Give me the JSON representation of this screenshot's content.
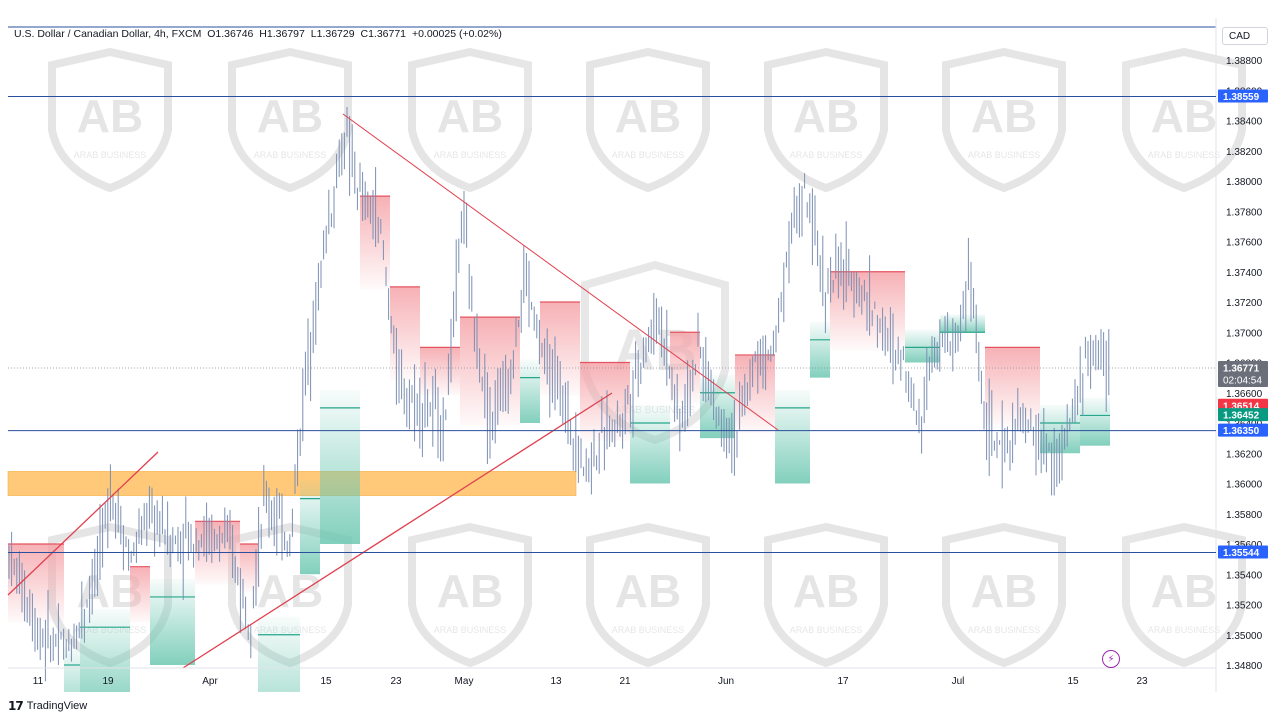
{
  "chart_data": {
    "type": "candlestick",
    "symbol_header": {
      "name": "U.S. Dollar / Canadian Dollar, 4h, FXCM",
      "open": "O1.36746",
      "high": "H1.36797",
      "low": "L1.36729",
      "close": "C1.36771",
      "change": "+0.00025 (+0.02%)"
    },
    "currency": "CAD",
    "ylim": [
      1.347,
      1.39
    ],
    "y_ticks": [
      "1.38800",
      "1.38600",
      "1.38400",
      "1.38200",
      "1.38000",
      "1.37800",
      "1.37600",
      "1.37400",
      "1.37200",
      "1.37000",
      "1.36800",
      "1.36600",
      "1.36400",
      "1.36200",
      "1.36000",
      "1.35800",
      "1.35600",
      "1.35400",
      "1.35200",
      "1.35000",
      "1.34800"
    ],
    "x_ticks": [
      "11",
      "19",
      "Apr",
      "15",
      "23",
      "May",
      "13",
      "21",
      "Jun",
      "17",
      "Jul",
      "15",
      "23"
    ],
    "horizontal_levels": [
      {
        "label": "1.38559",
        "value": 1.38559
      },
      {
        "label": "1.36350",
        "value": 1.3635
      },
      {
        "label": "1.35544",
        "value": 1.35544
      }
    ],
    "price_labels": {
      "last": "1.36771",
      "countdown": "02:04:54",
      "red": "1.36514",
      "green": "1.36452"
    },
    "supply_zone": {
      "top": 1.3608,
      "bottom": 1.3592
    },
    "colors": {
      "level_line": "#2a4f9e",
      "badge_blue": "#2962ff",
      "badge_last": "#6b6f7a",
      "badge_red": "#f23645",
      "badge_green": "#089981",
      "zone": "#ffb74d",
      "trendline": "#e0404f",
      "candle": "#7b8fb3",
      "cloud_red": "#f5a3a8",
      "cloud_green": "#6cc7b1"
    },
    "watermark_text": "ARAB BUSINESS",
    "watermark_logo": "AB"
  },
  "footer": {
    "brand": "TradingView",
    "brand_icon": "tradingview-logo-icon",
    "flash_icon": "lightning-icon"
  }
}
